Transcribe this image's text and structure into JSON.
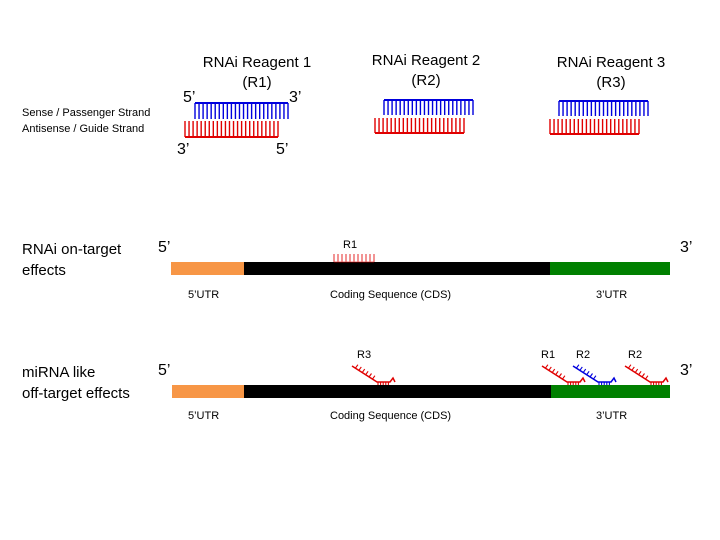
{
  "colors": {
    "sense_strand": "#0000dd",
    "guide_strand": "#e00000",
    "utr5": "#f79646",
    "cds": "#000000",
    "utr3": "#008000"
  },
  "reagents": [
    {
      "title": "RNAi Reagent 1",
      "abbr": "(R1)"
    },
    {
      "title": "RNAi Reagent 2",
      "abbr": "(R2)"
    },
    {
      "title": "RNAi Reagent 3",
      "abbr": "(R3)"
    }
  ],
  "strand_legend": {
    "sense": "Sense / Passenger Strand",
    "antisense": "Antisense / Guide Strand"
  },
  "strand_ends": {
    "sense_5": "5’",
    "sense_3": "3’",
    "guide_3": "3’",
    "guide_5": "5’"
  },
  "rows": [
    {
      "label_line1": "RNAi on-target",
      "label_line2": "effects",
      "end5": "5’",
      "end3": "3’",
      "segments": [
        "5’UTR",
        "Coding Sequence (CDS)",
        "3’UTR"
      ],
      "bound": [
        {
          "label": "R1",
          "strand": "guide",
          "type": "full"
        }
      ]
    },
    {
      "label_line1": "miRNA like",
      "label_line2": "off-target effects",
      "end5": "5’",
      "end3": "3’",
      "segments": [
        "5’UTR",
        "Coding Sequence (CDS)",
        "3’UTR"
      ],
      "bound": [
        {
          "label": "R3",
          "strand": "guide",
          "type": "seed"
        },
        {
          "label": "R1",
          "strand": "guide",
          "type": "seed"
        },
        {
          "label": "R2",
          "strand": "sense",
          "type": "seed"
        },
        {
          "label": "R2",
          "strand": "guide",
          "type": "seed"
        }
      ]
    }
  ]
}
